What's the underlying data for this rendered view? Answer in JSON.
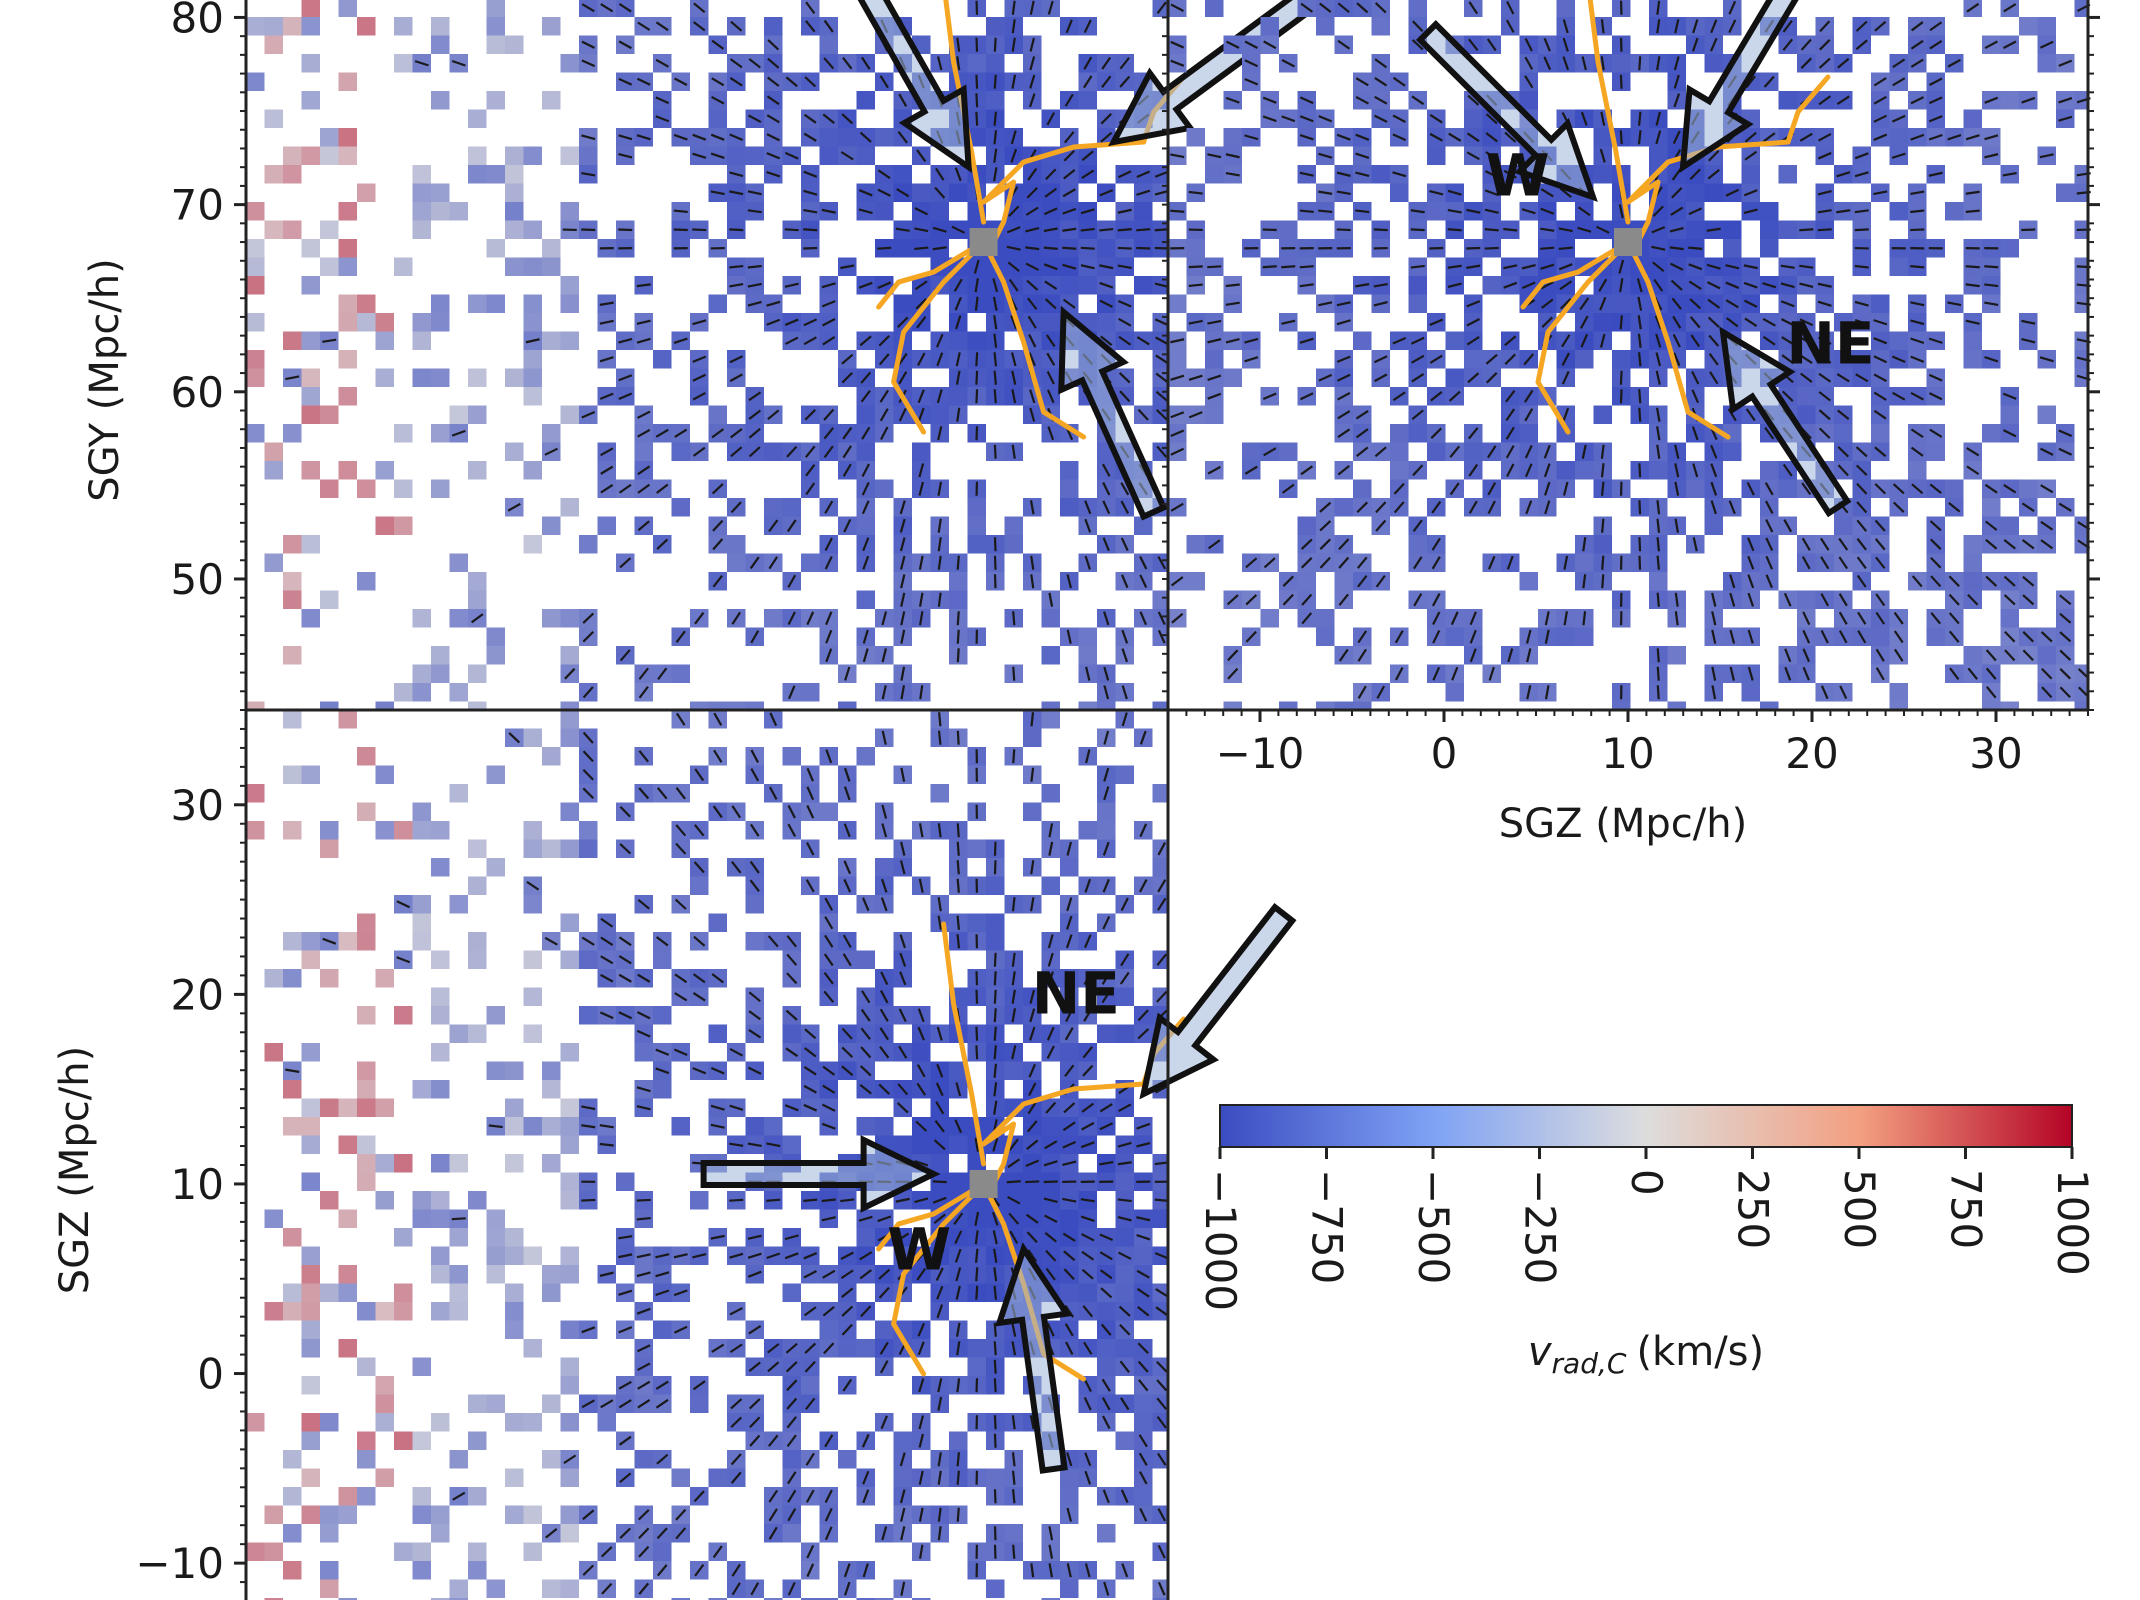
{
  "chart_data": {
    "type": "heatmap",
    "colors": {
      "neg_strong": "#3b4cc0",
      "neutral": "#dddddd",
      "pos_strong": "#b40426",
      "filament": "#f5a623",
      "marker": "#8a8a8a",
      "arrow_fill": "#9fb4d8",
      "frame": "#222222"
    },
    "panels": [
      {
        "id": "sgx-sgy",
        "xlim": [
          -40,
          10
        ],
        "ylim": [
          43,
          82
        ],
        "x_ticks": [],
        "y_ticks": [
          50,
          60,
          70,
          80
        ],
        "xlabel": "",
        "ylabel": "SGY (Mpc/h)",
        "center": [
          0,
          68
        ],
        "annotations": []
      },
      {
        "id": "sgz-sgy",
        "xlim": [
          -15,
          35
        ],
        "ylim": [
          43,
          82
        ],
        "x_ticks": [
          -10,
          0,
          10,
          20,
          30
        ],
        "y_ticks": [],
        "xlabel": "SGZ (Mpc/h)",
        "ylabel": "",
        "center": [
          10,
          68
        ],
        "annotations": [
          {
            "label": "W",
            "at": [
              4,
              70.5
            ]
          },
          {
            "label": "NE",
            "at": [
              21,
              61.5
            ]
          }
        ]
      },
      {
        "id": "sgx-sgz",
        "xlim": [
          -40,
          10
        ],
        "ylim": [
          -13,
          35
        ],
        "x_ticks": [],
        "y_ticks": [
          -10,
          0,
          10,
          20,
          30
        ],
        "xlabel": "",
        "ylabel": "SGZ (Mpc/h)",
        "center": [
          0,
          10
        ],
        "annotations": [
          {
            "label": "NE",
            "at": [
              5,
              19
            ]
          },
          {
            "label": "W",
            "at": [
              -3.5,
              5.5
            ]
          }
        ]
      }
    ],
    "colorbar": {
      "label": "v",
      "label_subscript": "rad,C",
      "label_units": "(km/s)",
      "min": -1000,
      "max": 1000,
      "ticks": [
        -1000,
        -750,
        -500,
        -250,
        0,
        250,
        500,
        750,
        1000
      ],
      "tick_labels": [
        "−1000",
        "−750",
        "−500",
        "−250",
        "0",
        "250",
        "500",
        "750",
        "1000"
      ],
      "orientation": "horizontal, tick labels rotated"
    }
  }
}
